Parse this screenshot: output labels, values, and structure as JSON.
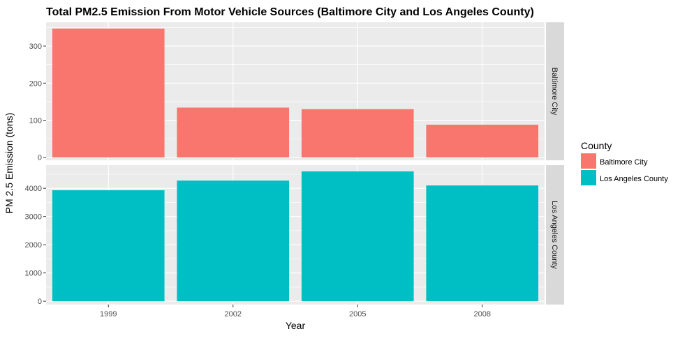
{
  "chart_data": {
    "type": "bar",
    "title": "Total PM2.5 Emission From Motor Vehicle Sources (Baltimore City and Los Angeles County)",
    "xlabel": "Year",
    "ylabel": "PM 2.5 Emission (tons)",
    "categories": [
      "1999",
      "2002",
      "2005",
      "2008"
    ],
    "grid": true,
    "legend": {
      "title": "County",
      "placement": "right",
      "entries": [
        {
          "label": "Baltimore City",
          "color": "#F8766D"
        },
        {
          "label": "Los Angeles County",
          "color": "#00BFC4"
        }
      ]
    },
    "panels": [
      {
        "name": "Baltimore City",
        "color": "#F8766D",
        "values": [
          347,
          134,
          130,
          88
        ],
        "ylim": [
          -8,
          364
        ],
        "yticks": [
          0,
          100,
          200,
          300
        ],
        "ytick_labels": [
          "0",
          "100",
          "200",
          "300"
        ]
      },
      {
        "name": "Los Angeles County",
        "color": "#00BFC4",
        "values": [
          3931,
          4274,
          4601,
          4101
        ],
        "ylim": [
          -120,
          4820
        ],
        "yticks": [
          0,
          1000,
          2000,
          3000,
          4000
        ],
        "ytick_labels": [
          "0",
          "1000",
          "2000",
          "3000",
          "4000"
        ]
      }
    ]
  }
}
